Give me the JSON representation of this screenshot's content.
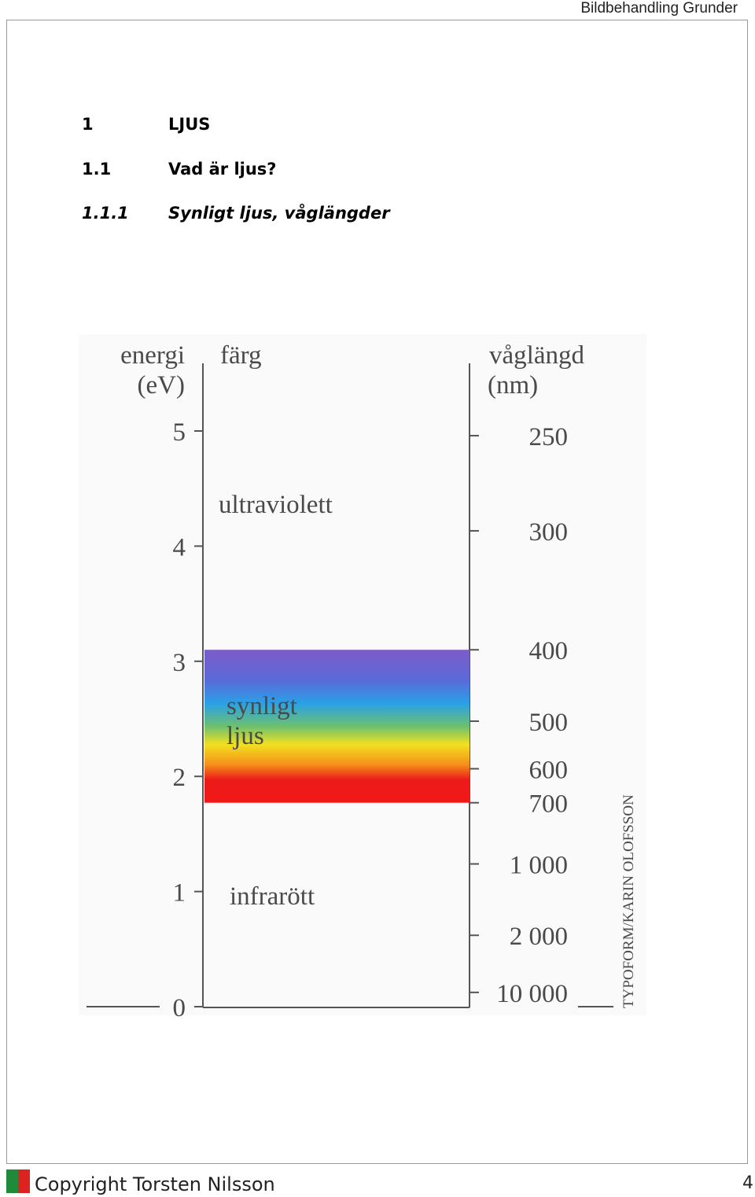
{
  "header": {
    "title": "Bildbehandling Grunder"
  },
  "headings": [
    {
      "number": "1",
      "title": "LJUS"
    },
    {
      "number": "1.1",
      "title": "Vad är ljus?"
    },
    {
      "number": "1.1.1",
      "title": "Synligt ljus, våglängder"
    }
  ],
  "figure": {
    "energy_label": [
      "energi",
      "(eV)"
    ],
    "color_label": "färg",
    "wavelength_label": [
      "våglängd",
      "(nm)"
    ],
    "energy_ticks": [
      0,
      1,
      2,
      3,
      4,
      5
    ],
    "wavelength_ticks": [
      250,
      300,
      400,
      500,
      600,
      700,
      {
        "value": 1000,
        "label": "1 000"
      },
      {
        "value": 2000,
        "label": "2 000"
      },
      {
        "value": 10000,
        "label": "10 000"
      }
    ],
    "regions": {
      "ultraviolet": "ultraviolett",
      "visible": [
        "synligt",
        "ljus"
      ],
      "infrared": "infrarött"
    },
    "credit": "TYPOFORM/KARIN OLOFSSON"
  },
  "footer": {
    "copyright": "Copyright  Torsten  Nilsson",
    "page": "4"
  }
}
